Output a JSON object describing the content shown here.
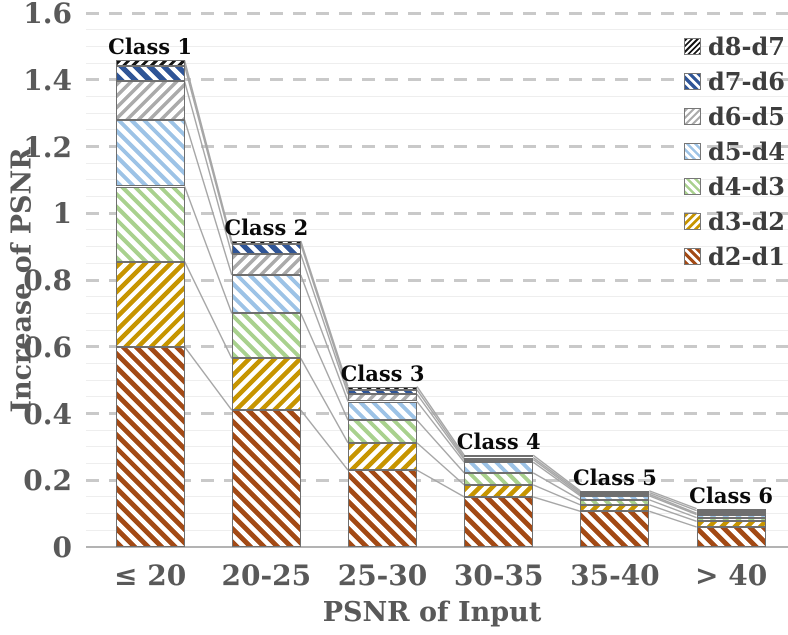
{
  "chart_data": {
    "type": "bar",
    "stacked": true,
    "title": "",
    "xlabel": "PSNR of Input",
    "ylabel": "Increase of PSNR",
    "ylim": [
      0,
      1.6
    ],
    "y_ticks": [
      "0",
      "0.2",
      "0.4",
      "0.6",
      "0.8",
      "1",
      "1.2",
      "1.4",
      "1.6"
    ],
    "categories": [
      "≤ 20",
      "20-25",
      "25-30",
      "30-35",
      "35-40",
      "> 40"
    ],
    "bar_labels": [
      "Class 1",
      "Class 2",
      "Class 3",
      "Class 4",
      "Class 5",
      "Class 6"
    ],
    "bar_totals": [
      1.46,
      0.92,
      0.48,
      0.275,
      0.168,
      0.115
    ],
    "series": [
      {
        "name": "d2-d1",
        "color": "#A34A15",
        "hatch": "\\",
        "values": [
          0.6,
          0.41,
          0.23,
          0.15,
          0.107,
          0.06
        ]
      },
      {
        "name": "d3-d2",
        "color": "#C79500",
        "hatch": "/",
        "values": [
          0.255,
          0.155,
          0.082,
          0.036,
          0.019,
          0.017
        ]
      },
      {
        "name": "d4-d3",
        "color": "#A9D18E",
        "hatch": "\\",
        "values": [
          0.225,
          0.135,
          0.068,
          0.036,
          0.015,
          0.011
        ]
      },
      {
        "name": "d5-d4",
        "color": "#9DC3E6",
        "hatch": "\\",
        "values": [
          0.2,
          0.115,
          0.056,
          0.032,
          0.012,
          0.009
        ]
      },
      {
        "name": "d6-d5",
        "color": "#ABABAB",
        "hatch": "/",
        "values": [
          0.115,
          0.062,
          0.022,
          0.008,
          0.005,
          0.004
        ]
      },
      {
        "name": "d7-d6",
        "color": "#2F5597",
        "hatch": "\\",
        "values": [
          0.047,
          0.03,
          0.013,
          0.006,
          0.005,
          0.008
        ]
      },
      {
        "name": "d8-d7",
        "color": "#141414",
        "hatch": "/",
        "values": [
          0.016,
          0.01,
          0.01,
          0.007,
          0.005,
          0.006
        ]
      }
    ],
    "legend_position": "top-right",
    "legend_order_top_to_bottom": [
      "d8-d7",
      "d7-d6",
      "d6-d5",
      "d5-d4",
      "d4-d3",
      "d3-d2",
      "d2-d1"
    ],
    "grid": {
      "major_step": 0.2,
      "minor_step": 0.05,
      "major_style": "dashed",
      "minor_style": "solid"
    },
    "colors": {
      "axis_text": "#595959",
      "bar_label_text": "#0A0A0A",
      "legend_text": "#3D3D3D",
      "gridline_major": "#C9C9C9",
      "gridline_minor": "#EEEEEE",
      "axis_line": "#B3B3B3",
      "segment_border": "#6F6F6F",
      "connector_line": "#A6A6A6",
      "background": "#FFFFFF"
    }
  }
}
